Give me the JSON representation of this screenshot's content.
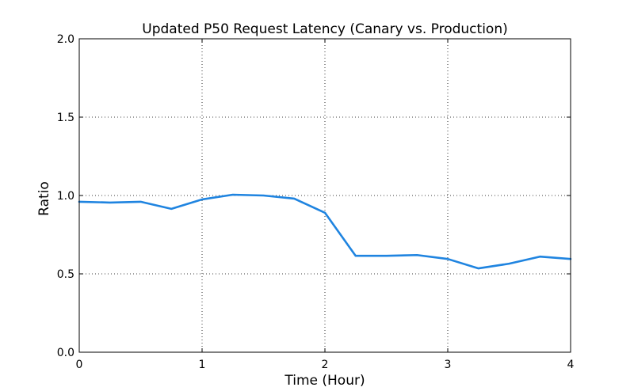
{
  "chart_data": {
    "type": "line",
    "title": "Updated P50 Request Latency (Canary vs. Production)",
    "xlabel": "Time (Hour)",
    "ylabel": "Ratio",
    "xlim": [
      0,
      4
    ],
    "ylim": [
      0.0,
      2.0
    ],
    "x_ticks": [
      0,
      1,
      2,
      3,
      4
    ],
    "x_tick_labels": [
      "0",
      "1",
      "2",
      "3",
      "4"
    ],
    "y_ticks": [
      0.0,
      0.5,
      1.0,
      1.5,
      2.0
    ],
    "y_tick_labels": [
      "0.0",
      "0.5",
      "1.0",
      "1.5",
      "2.0"
    ],
    "grid": true,
    "line_color": "#1f84e0",
    "x": [
      0,
      0.25,
      0.5,
      0.75,
      1.0,
      1.25,
      1.5,
      1.75,
      2.0,
      2.25,
      2.5,
      2.75,
      3.0,
      3.25,
      3.5,
      3.75,
      4.0
    ],
    "series": [
      {
        "values": [
          0.96,
          0.955,
          0.96,
          0.915,
          0.975,
          1.005,
          1.0,
          0.98,
          0.89,
          0.615,
          0.615,
          0.62,
          0.595,
          0.535,
          0.565,
          0.61,
          0.595
        ]
      }
    ]
  }
}
